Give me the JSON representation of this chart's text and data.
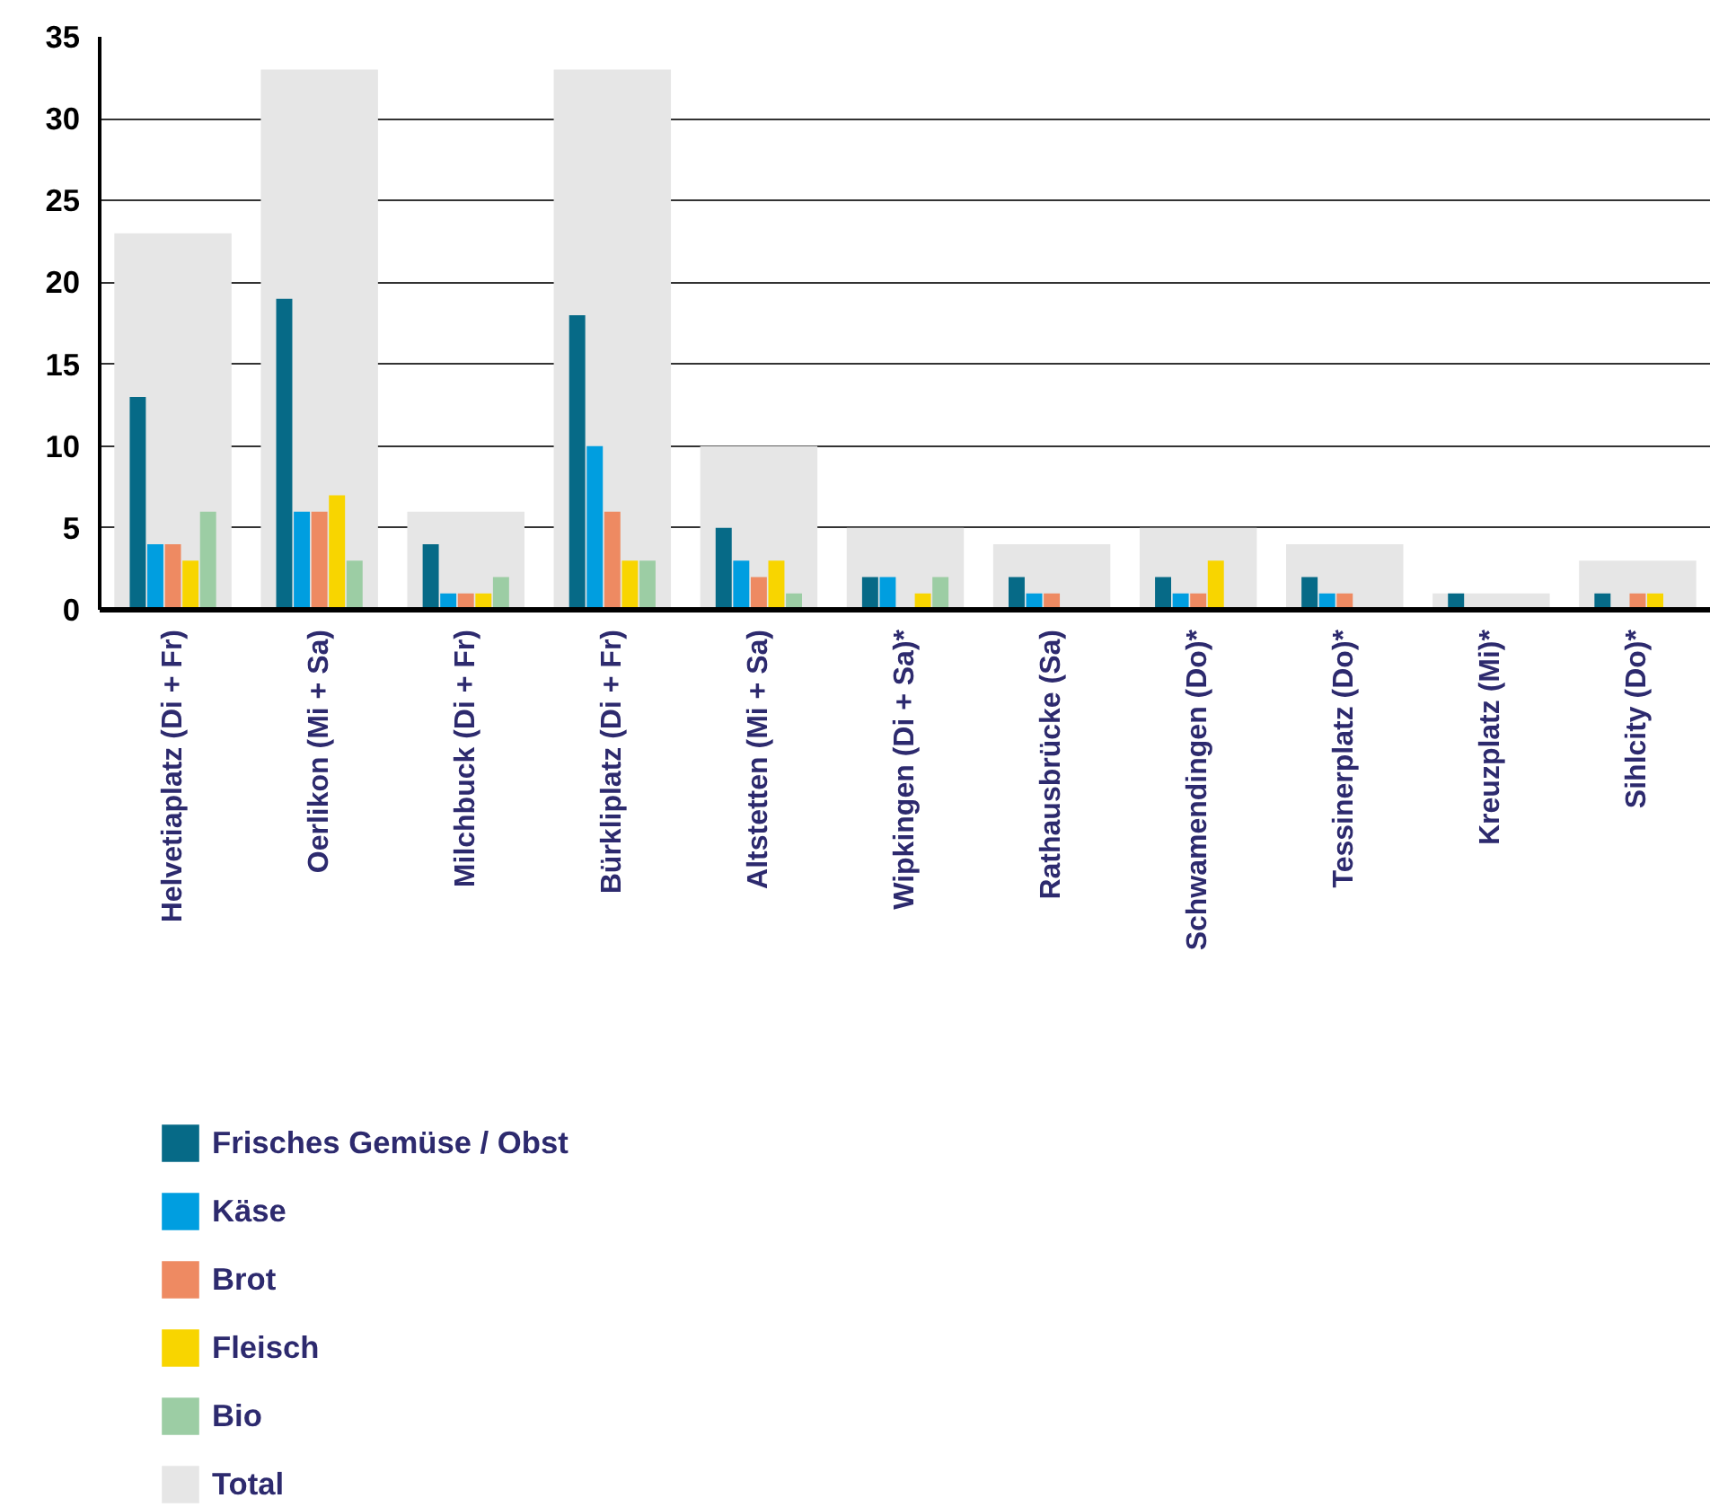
{
  "chart_data": {
    "type": "bar",
    "categories": [
      "Helvetiaplatz (Di + Fr)",
      "Oerlikon (Mi + Sa)",
      "Milchbuck (Di + Fr)",
      "Bürkliplatz (Di + Fr)",
      "Altstetten (Mi + Sa)",
      "Wipkingen (Di + Sa)*",
      "Rathausbrücke (Sa)",
      "Schwamendingen (Do)*",
      "Tessinerplatz (Do)*",
      "Kreuzplatz (Mi)*",
      "Sihlcity (Do)*"
    ],
    "series": [
      {
        "name": "Frisches Gemüse / Obst",
        "color": "#066a87",
        "values": [
          13,
          19,
          4,
          18,
          5,
          2,
          2,
          2,
          2,
          1,
          1
        ]
      },
      {
        "name": "Käse",
        "color": "#009ee0",
        "values": [
          4,
          6,
          1,
          10,
          3,
          2,
          1,
          1,
          1,
          null,
          null
        ]
      },
      {
        "name": "Brot",
        "color": "#ee8a62",
        "values": [
          4,
          6,
          1,
          6,
          2,
          null,
          1,
          1,
          1,
          null,
          1
        ]
      },
      {
        "name": "Fleisch",
        "color": "#f8d500",
        "values": [
          3,
          7,
          1,
          3,
          3,
          1,
          null,
          3,
          null,
          null,
          1
        ]
      },
      {
        "name": "Bio",
        "color": "#9ccda4",
        "values": [
          6,
          3,
          2,
          3,
          1,
          2,
          null,
          null,
          null,
          null,
          null
        ]
      },
      {
        "name": "Total",
        "color": "#e6e6e6",
        "values": [
          23,
          33,
          6,
          33,
          10,
          5,
          4,
          5,
          4,
          1,
          3
        ]
      }
    ],
    "ylim": [
      0,
      35
    ],
    "yticks": [
      0,
      5,
      10,
      15,
      20,
      25,
      30,
      35
    ],
    "grid": "y",
    "legend": "bottom left"
  }
}
